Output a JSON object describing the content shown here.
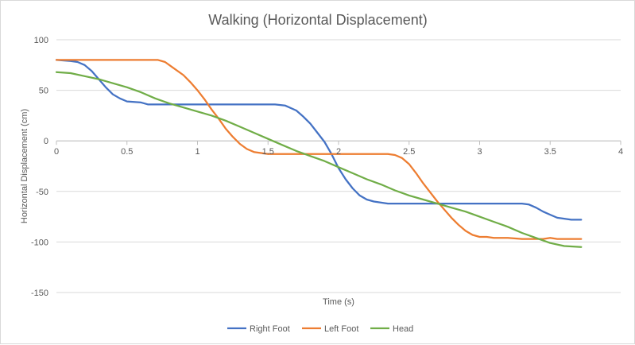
{
  "chart_data": {
    "type": "line",
    "title": "Walking (Horizontal Displacement)",
    "xlabel": "Time (s)",
    "ylabel": "Horizontal Displacement (cm)",
    "xlim": [
      0,
      4
    ],
    "ylim": [
      -150,
      100
    ],
    "x_ticks": [
      0,
      0.5,
      1,
      1.5,
      2,
      2.5,
      3,
      3.5,
      4
    ],
    "x_tick_labels": [
      "0",
      "0.5",
      "1",
      "1.5",
      "2",
      "2.5",
      "3",
      "3.5",
      "4"
    ],
    "y_ticks": [
      100,
      50,
      0,
      -50,
      -100,
      -150
    ],
    "y_tick_labels": [
      "100",
      "50",
      "0",
      "-50",
      "-100",
      "-150"
    ],
    "grid": "horizontal",
    "legend_position": "bottom",
    "series": [
      {
        "name": "Right Foot",
        "color": "#4472c4",
        "points": [
          [
            0,
            80
          ],
          [
            0.1,
            79
          ],
          [
            0.15,
            78
          ],
          [
            0.2,
            75
          ],
          [
            0.25,
            69
          ],
          [
            0.3,
            61
          ],
          [
            0.35,
            53
          ],
          [
            0.4,
            46
          ],
          [
            0.45,
            42
          ],
          [
            0.5,
            39
          ],
          [
            0.6,
            38
          ],
          [
            0.65,
            36
          ],
          [
            0.8,
            36
          ],
          [
            1.0,
            36
          ],
          [
            1.2,
            36
          ],
          [
            1.4,
            36
          ],
          [
            1.55,
            36
          ],
          [
            1.62,
            35
          ],
          [
            1.7,
            30
          ],
          [
            1.75,
            24
          ],
          [
            1.8,
            17
          ],
          [
            1.85,
            8
          ],
          [
            1.9,
            -1
          ],
          [
            1.95,
            -13
          ],
          [
            2.0,
            -27
          ],
          [
            2.05,
            -38
          ],
          [
            2.1,
            -47
          ],
          [
            2.15,
            -54
          ],
          [
            2.2,
            -58
          ],
          [
            2.25,
            -60
          ],
          [
            2.35,
            -62
          ],
          [
            2.6,
            -62
          ],
          [
            3.0,
            -62
          ],
          [
            3.3,
            -62
          ],
          [
            3.35,
            -63
          ],
          [
            3.4,
            -66
          ],
          [
            3.45,
            -70
          ],
          [
            3.5,
            -73
          ],
          [
            3.55,
            -76
          ],
          [
            3.6,
            -77
          ],
          [
            3.65,
            -78
          ],
          [
            3.72,
            -78
          ]
        ]
      },
      {
        "name": "Left Foot",
        "color": "#ed7d31",
        "points": [
          [
            0,
            80
          ],
          [
            0.3,
            80
          ],
          [
            0.6,
            80
          ],
          [
            0.72,
            80
          ],
          [
            0.77,
            78
          ],
          [
            0.82,
            73
          ],
          [
            0.9,
            65
          ],
          [
            0.95,
            58
          ],
          [
            1.0,
            50
          ],
          [
            1.05,
            41
          ],
          [
            1.1,
            31
          ],
          [
            1.15,
            22
          ],
          [
            1.2,
            12
          ],
          [
            1.25,
            4
          ],
          [
            1.3,
            -3
          ],
          [
            1.35,
            -8
          ],
          [
            1.4,
            -11
          ],
          [
            1.45,
            -12
          ],
          [
            1.5,
            -13
          ],
          [
            1.6,
            -13
          ],
          [
            1.8,
            -13
          ],
          [
            2.0,
            -13
          ],
          [
            2.2,
            -13
          ],
          [
            2.35,
            -13
          ],
          [
            2.4,
            -14
          ],
          [
            2.45,
            -17
          ],
          [
            2.5,
            -23
          ],
          [
            2.55,
            -32
          ],
          [
            2.6,
            -42
          ],
          [
            2.65,
            -51
          ],
          [
            2.7,
            -60
          ],
          [
            2.75,
            -68
          ],
          [
            2.8,
            -76
          ],
          [
            2.85,
            -83
          ],
          [
            2.9,
            -89
          ],
          [
            2.95,
            -93
          ],
          [
            3.0,
            -95
          ],
          [
            3.05,
            -95
          ],
          [
            3.1,
            -96
          ],
          [
            3.2,
            -96
          ],
          [
            3.3,
            -97
          ],
          [
            3.45,
            -97
          ],
          [
            3.5,
            -96
          ],
          [
            3.55,
            -97
          ],
          [
            3.6,
            -97
          ],
          [
            3.72,
            -97
          ]
        ]
      },
      {
        "name": "Head",
        "color": "#70ad47",
        "points": [
          [
            0,
            68
          ],
          [
            0.1,
            67
          ],
          [
            0.2,
            64
          ],
          [
            0.3,
            61
          ],
          [
            0.4,
            57
          ],
          [
            0.5,
            53
          ],
          [
            0.6,
            48
          ],
          [
            0.7,
            42
          ],
          [
            0.8,
            37
          ],
          [
            0.9,
            33
          ],
          [
            1.0,
            29
          ],
          [
            1.1,
            25
          ],
          [
            1.2,
            20
          ],
          [
            1.3,
            14
          ],
          [
            1.4,
            8
          ],
          [
            1.5,
            2
          ],
          [
            1.6,
            -4
          ],
          [
            1.7,
            -10
          ],
          [
            1.8,
            -15
          ],
          [
            1.9,
            -20
          ],
          [
            2.0,
            -26
          ],
          [
            2.1,
            -32
          ],
          [
            2.2,
            -38
          ],
          [
            2.3,
            -43
          ],
          [
            2.4,
            -49
          ],
          [
            2.5,
            -54
          ],
          [
            2.6,
            -58
          ],
          [
            2.7,
            -62
          ],
          [
            2.8,
            -66
          ],
          [
            2.9,
            -70
          ],
          [
            3.0,
            -75
          ],
          [
            3.1,
            -80
          ],
          [
            3.2,
            -85
          ],
          [
            3.3,
            -91
          ],
          [
            3.4,
            -96
          ],
          [
            3.5,
            -101
          ],
          [
            3.6,
            -104
          ],
          [
            3.72,
            -105
          ]
        ]
      }
    ]
  }
}
